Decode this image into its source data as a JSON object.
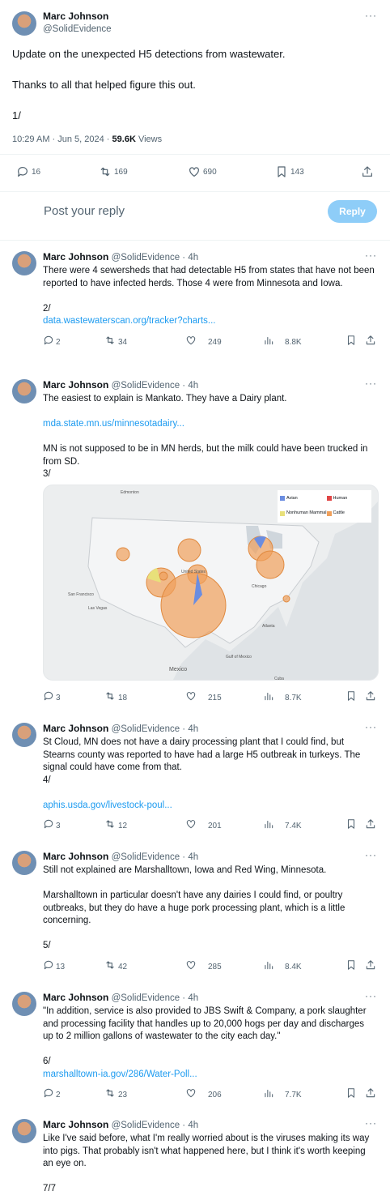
{
  "main": {
    "name": "Marc Johnson",
    "handle": "@SolidEvidence",
    "paragraphs": [
      "Update on the unexpected H5 detections from wastewater.",
      "Thanks to all that helped figure this out.",
      "1/"
    ],
    "time": "10:29 AM · Jun 5, 2024 · ",
    "views": "59.6K",
    "views_label": "Views",
    "stats": [
      16,
      169,
      690,
      143
    ]
  },
  "reply_box": {
    "placeholder": "Post your reply",
    "button": "Reply"
  },
  "replies": [
    {
      "name": "Marc Johnson",
      "handle": "@SolidEvidence · 4h",
      "body": [
        [
          {
            "text": "There were 4 sewersheds that had detectable H5 from states that have not been reported to have infected herds.  Those 4 were from Minnesota and Iowa."
          }
        ],
        [
          {
            "text": "2/"
          },
          {
            "link": "data.wastewaterscan.org/tracker?charts..."
          }
        ]
      ],
      "stats": [
        2,
        34,
        249,
        "8.8K"
      ]
    },
    {
      "name": "Marc Johnson",
      "handle": "@SolidEvidence · 4h",
      "body": [
        [
          {
            "text": "The easiest to explain is Mankato.  They have a Dairy plant."
          }
        ],
        [
          {
            "link": "mda.state.mn.us/minnesotadairy..."
          }
        ],
        [
          {
            "text": "MN is not supposed to be in MN herds, but the milk could have been trucked in from SD."
          },
          {
            "text": "3/"
          }
        ]
      ],
      "map": {
        "legend": [
          "Avian",
          "Human",
          "Nonhuman Mammal",
          "Cattle"
        ],
        "labels": [
          "Edmonton",
          "United States",
          "Mexico",
          "Gulf of Mexico",
          "Chicago",
          "Atlanta",
          "Cuba",
          "San Francisco",
          "Las Vegas"
        ]
      },
      "stats": [
        3,
        18,
        215,
        "8.7K"
      ]
    },
    {
      "name": "Marc Johnson",
      "handle": "@SolidEvidence · 4h",
      "body": [
        [
          {
            "text": "St Cloud, MN does not have a dairy processing plant that I could find, but Stearns county was reported to have had a large H5 outbreak in turkeys.  The signal could have come from that."
          },
          {
            "text": "4/"
          }
        ],
        [
          {
            "link": "aphis.usda.gov/livestock-poul..."
          }
        ]
      ],
      "stats": [
        3,
        12,
        201,
        "7.4K"
      ]
    },
    {
      "name": "Marc Johnson",
      "handle": "@SolidEvidence · 4h",
      "body": [
        [
          {
            "text": "Still not explained are Marshalltown, Iowa and Red Wing, Minnesota."
          }
        ],
        [
          {
            "text": "Marshalltown in particular doesn't have any dairies I could find, or poultry outbreaks, but they do have a huge pork processing plant, which is a little concerning."
          }
        ],
        [
          {
            "text": "5/"
          }
        ]
      ],
      "stats": [
        13,
        42,
        285,
        "8.4K"
      ]
    },
    {
      "name": "Marc Johnson",
      "handle": "@SolidEvidence · 4h",
      "body": [
        [
          {
            "text": "\"In addition, service is also provided to JBS Swift & Company, a pork slaughter and processing facility that handles up to 20,000 hogs per  day and discharges up to 2 million gallons of wastewater to the city  each day.\""
          }
        ],
        [
          {
            "text": "6/"
          },
          {
            "link": "marshalltown-ia.gov/286/Water-Poll..."
          }
        ]
      ],
      "stats": [
        2,
        23,
        206,
        "7.7K"
      ]
    },
    {
      "name": "Marc Johnson",
      "handle": "@SolidEvidence · 4h",
      "body": [
        [
          {
            "text": "Like I've said before, what I'm really worried about is the viruses making its way into pigs.  That probably isn't what happened here, but I think it's worth keeping an eye on."
          }
        ],
        [
          {
            "text": "7/7"
          }
        ]
      ],
      "stats": []
    }
  ]
}
